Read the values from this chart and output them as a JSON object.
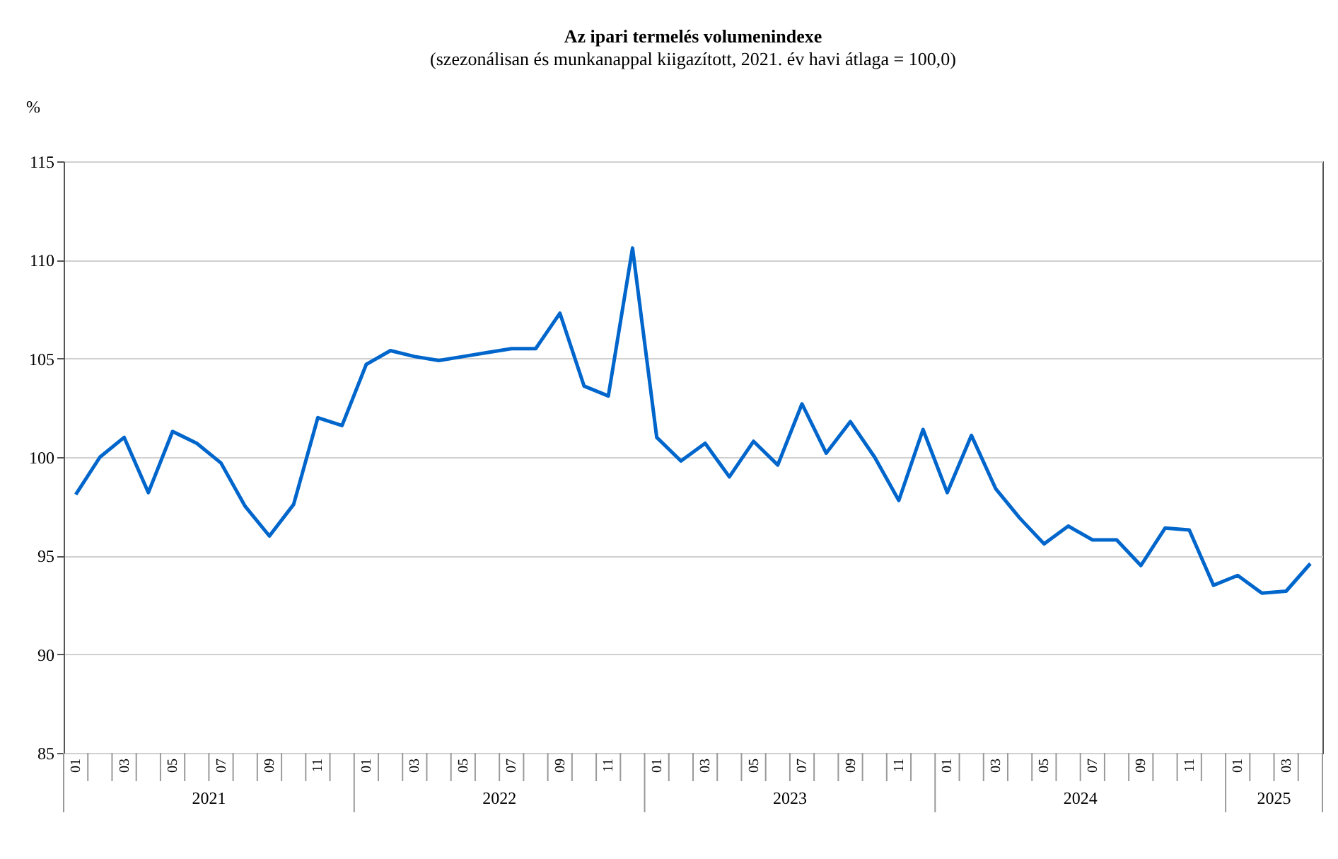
{
  "chart_data": {
    "type": "line",
    "title": "Az ipari termelés volumenindexe",
    "subtitle": "(szezonálisan és munkanappal kiigazított, 2021. év havi átlaga = 100,0)",
    "ylabel": "%",
    "categories": [
      "01",
      null,
      "03",
      null,
      "05",
      null,
      "07",
      null,
      "09",
      null,
      "11",
      null,
      "01",
      null,
      "03",
      null,
      "05",
      null,
      "07",
      null,
      "09",
      null,
      "11",
      null,
      "01",
      null,
      "03",
      null,
      "05",
      null,
      "07",
      null,
      "09",
      null,
      "11",
      null,
      "01",
      null,
      "03",
      null,
      "05",
      null,
      "07",
      null,
      "09",
      null,
      "11",
      null,
      "01",
      null,
      "03",
      null
    ],
    "series": [
      {
        "color": "#0066cc",
        "values": [
          98.1,
          100.0,
          101.0,
          98.2,
          101.3,
          100.7,
          99.7,
          97.5,
          96.0,
          97.6,
          102.0,
          101.6,
          104.7,
          105.4,
          105.1,
          104.9,
          105.1,
          105.3,
          105.5,
          105.5,
          107.3,
          103.6,
          103.1,
          110.6,
          101.0,
          99.8,
          100.7,
          99.0,
          100.8,
          99.6,
          102.7,
          100.2,
          101.8,
          100.0,
          97.8,
          101.4,
          98.2,
          101.1,
          98.4,
          96.9,
          95.6,
          96.5,
          95.8,
          95.8,
          94.5,
          96.4,
          96.3,
          93.5,
          94.0,
          93.1,
          93.2,
          94.6
        ]
      }
    ],
    "annotations": [
      "2021",
      "2022",
      "2023",
      "2024",
      "2025"
    ],
    "ylim": [
      85,
      115
    ],
    "yticks": [
      85,
      90,
      95,
      100,
      105,
      110,
      115
    ],
    "grid": "y",
    "marker": "none",
    "line_style": "solid"
  }
}
